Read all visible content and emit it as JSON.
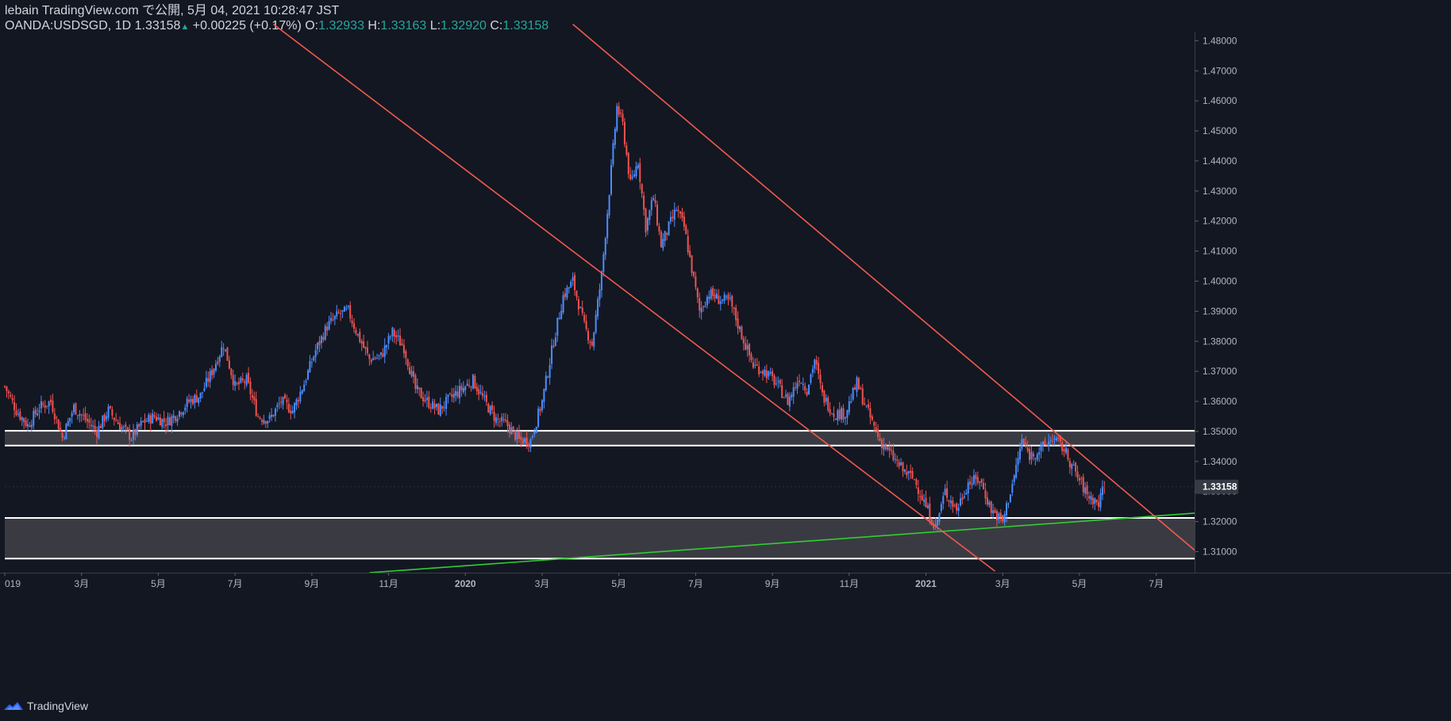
{
  "header": {
    "publish_line": "lebain TradingView.com で公開, 5月 04, 2021 10:28:47 JST",
    "symbol": "OANDA:USDSGD, 1D",
    "last": "1.33158",
    "change_arrow": "▲",
    "change": "+0.00225 (+0.17%)",
    "o_label": "O:",
    "o_value": "1.32933",
    "h_label": "H:",
    "h_value": "1.33163",
    "l_label": "L:",
    "l_value": "1.32920",
    "c_label": "C:",
    "c_value": "1.33158"
  },
  "footer": {
    "brand": "TradingView",
    "brand_icon": "tradingview-logo-icon"
  },
  "colors": {
    "background": "#131722",
    "up": "#2962ff",
    "up_line": "#4c8dff",
    "down": "#ef5350",
    "channel": "#f05a4f",
    "support": "#33cc33",
    "zone_fill": "#3a3b42",
    "zone_line": "#ffffff",
    "axis_text": "#b2b5be",
    "last_price_bg": "#363a45"
  },
  "chart_data": {
    "type": "candlestick",
    "title": "OANDA:USDSGD, 1D",
    "y_range": [
      1.303,
      1.483
    ],
    "y_ticks": [
      "1.48000",
      "1.47000",
      "1.46000",
      "1.45000",
      "1.44000",
      "1.43000",
      "1.42000",
      "1.41000",
      "1.40000",
      "1.39000",
      "1.38000",
      "1.37000",
      "1.36000",
      "1.35000",
      "1.34000",
      "1.33000",
      "1.32000",
      "1.31000"
    ],
    "last_price_label": "1.33158",
    "last_price": 1.33158,
    "x_labels": [
      "019",
      "3月",
      "5月",
      "7月",
      "9月",
      "11月",
      "2020",
      "3月",
      "5月",
      "7月",
      "9月",
      "11月",
      "2021",
      "3月",
      "5月",
      "7月"
    ],
    "x_label_months": [
      0,
      2,
      4,
      6,
      8,
      10,
      12,
      14,
      16,
      18,
      20,
      22,
      24,
      26,
      28,
      30
    ],
    "x_range_months": [
      0,
      31
    ],
    "series_close": [
      [
        0.0,
        1.365
      ],
      [
        0.3,
        1.357
      ],
      [
        0.6,
        1.352
      ],
      [
        0.9,
        1.358
      ],
      [
        1.2,
        1.36
      ],
      [
        1.5,
        1.348
      ],
      [
        1.8,
        1.358
      ],
      [
        2.1,
        1.354
      ],
      [
        2.4,
        1.35
      ],
      [
        2.7,
        1.357
      ],
      [
        3.0,
        1.352
      ],
      [
        3.3,
        1.348
      ],
      [
        3.6,
        1.353
      ],
      [
        3.9,
        1.355
      ],
      [
        4.2,
        1.353
      ],
      [
        4.5,
        1.356
      ],
      [
        4.8,
        1.36
      ],
      [
        5.1,
        1.362
      ],
      [
        5.4,
        1.37
      ],
      [
        5.7,
        1.379
      ],
      [
        6.0,
        1.365
      ],
      [
        6.3,
        1.367
      ],
      [
        6.6,
        1.355
      ],
      [
        6.9,
        1.354
      ],
      [
        7.2,
        1.36
      ],
      [
        7.5,
        1.357
      ],
      [
        7.8,
        1.366
      ],
      [
        8.1,
        1.377
      ],
      [
        8.4,
        1.385
      ],
      [
        8.7,
        1.389
      ],
      [
        8.95,
        1.39
      ],
      [
        9.2,
        1.382
      ],
      [
        9.5,
        1.374
      ],
      [
        9.8,
        1.375
      ],
      [
        10.1,
        1.383
      ],
      [
        10.4,
        1.378
      ],
      [
        10.7,
        1.364
      ],
      [
        11.0,
        1.36
      ],
      [
        11.3,
        1.357
      ],
      [
        11.6,
        1.361
      ],
      [
        11.9,
        1.364
      ],
      [
        12.2,
        1.367
      ],
      [
        12.5,
        1.36
      ],
      [
        12.8,
        1.354
      ],
      [
        13.1,
        1.352
      ],
      [
        13.4,
        1.347
      ],
      [
        13.7,
        1.347
      ],
      [
        14.0,
        1.36
      ],
      [
        14.3,
        1.38
      ],
      [
        14.55,
        1.395
      ],
      [
        14.8,
        1.4
      ],
      [
        15.1,
        1.385
      ],
      [
        15.3,
        1.379
      ],
      [
        15.55,
        1.402
      ],
      [
        15.75,
        1.43
      ],
      [
        15.95,
        1.458
      ],
      [
        16.1,
        1.452
      ],
      [
        16.3,
        1.432
      ],
      [
        16.5,
        1.44
      ],
      [
        16.7,
        1.418
      ],
      [
        16.9,
        1.428
      ],
      [
        17.1,
        1.412
      ],
      [
        17.3,
        1.418
      ],
      [
        17.5,
        1.424
      ],
      [
        17.7,
        1.418
      ],
      [
        17.9,
        1.404
      ],
      [
        18.1,
        1.39
      ],
      [
        18.35,
        1.396
      ],
      [
        18.6,
        1.394
      ],
      [
        18.9,
        1.393
      ],
      [
        19.2,
        1.382
      ],
      [
        19.5,
        1.372
      ],
      [
        19.8,
        1.37
      ],
      [
        20.1,
        1.366
      ],
      [
        20.4,
        1.36
      ],
      [
        20.7,
        1.368
      ],
      [
        20.9,
        1.364
      ],
      [
        21.1,
        1.374
      ],
      [
        21.3,
        1.362
      ],
      [
        21.6,
        1.356
      ],
      [
        21.9,
        1.356
      ],
      [
        22.2,
        1.366
      ],
      [
        22.5,
        1.356
      ],
      [
        22.8,
        1.347
      ],
      [
        23.1,
        1.342
      ],
      [
        23.4,
        1.337
      ],
      [
        23.7,
        1.334
      ],
      [
        24.0,
        1.325
      ],
      [
        24.25,
        1.318
      ],
      [
        24.5,
        1.33
      ],
      [
        24.8,
        1.324
      ],
      [
        25.1,
        1.333
      ],
      [
        25.4,
        1.334
      ],
      [
        25.7,
        1.324
      ],
      [
        26.0,
        1.32
      ],
      [
        26.3,
        1.335
      ],
      [
        26.5,
        1.347
      ],
      [
        26.7,
        1.342
      ],
      [
        27.0,
        1.344
      ],
      [
        27.3,
        1.348
      ],
      [
        27.6,
        1.344
      ],
      [
        27.9,
        1.336
      ],
      [
        28.2,
        1.329
      ],
      [
        28.5,
        1.326
      ],
      [
        28.65,
        1.3316
      ]
    ],
    "annotations": {
      "channel_upper": [
        [
          14.8,
          1.4855
        ],
        [
          31.0,
          1.3105
        ]
      ],
      "channel_lower": [
        [
          7.0,
          1.4855
        ],
        [
          25.8,
          1.3035
        ]
      ],
      "support_trendline": [
        [
          9.5,
          1.303
        ],
        [
          31.0,
          1.3228
        ]
      ],
      "zone_upper": [
        1.3453,
        1.3502
      ],
      "zone_lower": [
        1.3077,
        1.3212
      ]
    }
  }
}
